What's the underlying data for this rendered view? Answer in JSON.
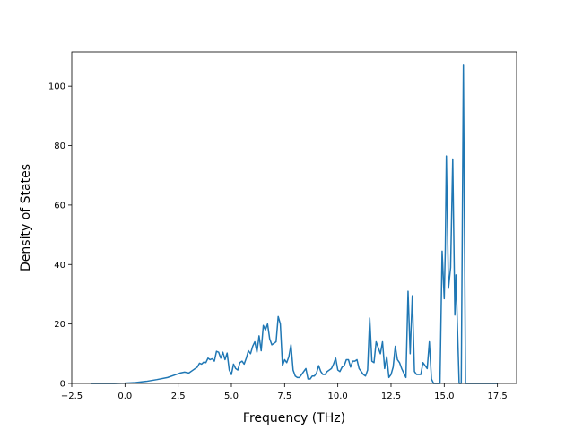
{
  "chart_data": {
    "type": "line",
    "title": "",
    "xlabel": "Frequency (THz)",
    "ylabel": "Density of States",
    "xlim": [
      -2.5,
      18.4
    ],
    "ylim": [
      0,
      111.5
    ],
    "xticks": [
      -2.5,
      0.0,
      2.5,
      5.0,
      7.5,
      10.0,
      12.5,
      15.0,
      17.5
    ],
    "xtick_labels": [
      "−2.5",
      "0.0",
      "2.5",
      "5.0",
      "7.5",
      "10.0",
      "12.5",
      "15.0",
      "17.5"
    ],
    "yticks": [
      0,
      20,
      40,
      60,
      80,
      100
    ],
    "ytick_labels": [
      "0",
      "20",
      "40",
      "60",
      "80",
      "100"
    ],
    "grid": false,
    "line_color": "#1f77b4",
    "series": [
      {
        "x": [
          -1.6,
          -1.0,
          -0.5,
          0.0,
          0.5,
          1.0,
          1.5,
          2.0,
          2.4,
          2.6,
          2.8,
          3.0,
          3.2,
          3.4,
          3.5,
          3.6,
          3.7,
          3.8,
          3.9,
          4.0,
          4.1,
          4.2,
          4.3,
          4.4,
          4.5,
          4.6,
          4.7,
          4.8,
          4.9,
          5.0,
          5.1,
          5.2,
          5.3,
          5.4,
          5.5,
          5.6,
          5.7,
          5.8,
          5.9,
          6.0,
          6.1,
          6.2,
          6.3,
          6.4,
          6.5,
          6.6,
          6.7,
          6.8,
          6.9,
          7.0,
          7.1,
          7.2,
          7.3,
          7.4,
          7.5,
          7.6,
          7.7,
          7.8,
          7.9,
          8.0,
          8.1,
          8.2,
          8.3,
          8.4,
          8.5,
          8.6,
          8.7,
          8.8,
          8.9,
          9.0,
          9.1,
          9.2,
          9.3,
          9.4,
          9.5,
          9.6,
          9.7,
          9.8,
          9.9,
          10.0,
          10.1,
          10.2,
          10.3,
          10.4,
          10.5,
          10.6,
          10.7,
          10.8,
          10.9,
          11.0,
          11.1,
          11.2,
          11.3,
          11.4,
          11.5,
          11.6,
          11.7,
          11.8,
          11.9,
          12.0,
          12.1,
          12.2,
          12.3,
          12.4,
          12.5,
          12.6,
          12.7,
          12.8,
          12.9,
          13.0,
          13.1,
          13.2,
          13.3,
          13.4,
          13.5,
          13.6,
          13.7,
          13.8,
          13.9,
          14.0,
          14.1,
          14.2,
          14.3,
          14.4,
          14.5,
          14.6,
          14.7,
          14.8,
          14.9,
          15.0,
          15.05,
          15.1,
          15.2,
          15.3,
          15.4,
          15.5,
          15.55,
          15.6,
          15.7,
          15.8,
          15.9,
          16.0,
          16.1,
          16.5,
          17.0,
          17.5
        ],
        "y": [
          0,
          0,
          0,
          0.1,
          0.3,
          0.7,
          1.3,
          2.0,
          3.0,
          3.5,
          3.8,
          3.5,
          4.5,
          5.5,
          6.8,
          6.5,
          7.2,
          7.0,
          8.5,
          8.0,
          8.3,
          7.5,
          10.8,
          10.5,
          8.5,
          10.5,
          8.0,
          10.2,
          4.5,
          3.0,
          6.5,
          5.0,
          4.5,
          7.0,
          7.5,
          6.5,
          8.5,
          11.0,
          10.0,
          12.5,
          14.0,
          10.5,
          16.0,
          11.0,
          19.5,
          18.0,
          20.0,
          15.0,
          13.0,
          13.5,
          14.0,
          22.5,
          20.0,
          6.0,
          8.0,
          7.0,
          9.0,
          13.0,
          4.5,
          2.5,
          2.0,
          2.0,
          3.0,
          4.0,
          5.0,
          1.5,
          1.5,
          2.5,
          2.5,
          3.5,
          6.0,
          4.0,
          3.0,
          3.0,
          4.0,
          4.5,
          5.0,
          6.5,
          8.5,
          4.5,
          4.0,
          5.5,
          6.0,
          8.0,
          8.0,
          5.5,
          7.5,
          7.5,
          8.0,
          5.0,
          4.0,
          3.0,
          2.5,
          4.5,
          22.0,
          7.5,
          7.0,
          14.0,
          12.0,
          10.0,
          14.0,
          5.0,
          9.0,
          2.0,
          3.0,
          5.5,
          12.5,
          8.0,
          7.0,
          5.0,
          3.5,
          2.0,
          31.0,
          10.0,
          29.5,
          4.0,
          3.0,
          3.0,
          3.0,
          7.0,
          6.0,
          5.0,
          14.0,
          1.5,
          0,
          0,
          0,
          0,
          44.5,
          28.5,
          45.0,
          76.5,
          32.0,
          39.0,
          75.5,
          23.0,
          36.5,
          24.0,
          0,
          0,
          107.0,
          0,
          0,
          0,
          0,
          0
        ]
      }
    ]
  }
}
